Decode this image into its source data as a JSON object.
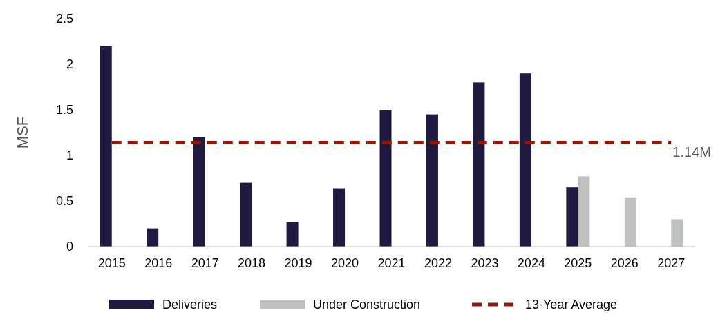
{
  "chart_data": {
    "type": "bar",
    "ylabel": "MSF",
    "categories": [
      "2015",
      "2016",
      "2017",
      "2018",
      "2019",
      "2020",
      "2021",
      "2022",
      "2023",
      "2024",
      "2025",
      "2026",
      "2027"
    ],
    "series": [
      {
        "name": "Deliveries",
        "color": "#201a40",
        "values": [
          2.2,
          0.2,
          1.2,
          0.7,
          0.27,
          0.64,
          1.5,
          1.45,
          1.8,
          1.9,
          0.65,
          null,
          null
        ]
      },
      {
        "name": "Under Construction",
        "color": "#bfc1c1",
        "values": [
          null,
          null,
          null,
          null,
          null,
          null,
          null,
          null,
          null,
          null,
          0.77,
          0.54,
          0.3
        ]
      },
      {
        "name": "13-Year Average",
        "type": "line",
        "color": "#8b1a10",
        "line_style": "dashed",
        "values": [
          1.14,
          1.14,
          1.14,
          1.14,
          1.14,
          1.14,
          1.14,
          1.14,
          1.14,
          1.14,
          1.14,
          1.14,
          1.14
        ]
      }
    ],
    "annotations": [
      {
        "text": "1.14M",
        "x": "2027",
        "y": 1.14
      }
    ],
    "ylim": [
      0,
      2.5
    ],
    "yticks": [
      0,
      0.5,
      1,
      1.5,
      2,
      2.5
    ],
    "grid": false,
    "legend": "bottom"
  }
}
